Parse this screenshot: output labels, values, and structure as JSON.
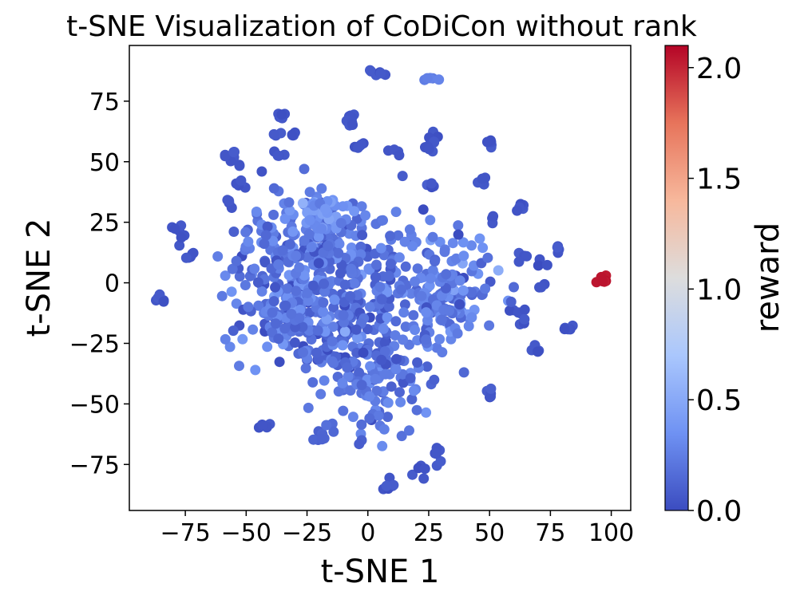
{
  "chart_data": {
    "type": "scatter",
    "title": "t-SNE Visualization of CoDiCon without rank",
    "xlabel": "t-SNE 1",
    "ylabel": "t-SNE 2",
    "xlim": [
      -98,
      108
    ],
    "ylim": [
      -94,
      98
    ],
    "xticks": [
      -75,
      -50,
      -25,
      0,
      25,
      50,
      75,
      100
    ],
    "yticks": [
      -75,
      -50,
      -25,
      0,
      25,
      50,
      75
    ],
    "xtick_labels": [
      "−75",
      "−50",
      "−25",
      "0",
      "25",
      "50",
      "75",
      "100"
    ],
    "ytick_labels": [
      "−75",
      "−50",
      "−25",
      "0",
      "25",
      "50",
      "75"
    ],
    "colorbar": {
      "label": "reward",
      "range": [
        0.0,
        2.1
      ],
      "ticks": [
        0.0,
        0.5,
        1.0,
        1.5,
        2.0
      ],
      "tick_labels": [
        "0.0",
        "0.5",
        "1.0",
        "1.5",
        "2.0"
      ],
      "colormap": "coolwarm",
      "colormap_stops": [
        "#3b4cc0",
        "#6f92f3",
        "#aac7fd",
        "#dddddd",
        "#f7b89c",
        "#e7745b",
        "#b40426"
      ]
    },
    "clusters": [
      {
        "x": 96,
        "y": 0,
        "spread": 1.2,
        "n": 6,
        "reward": 2.05
      },
      {
        "x": 26,
        "y": 84,
        "spread": 1.2,
        "n": 5,
        "reward": 0.25
      },
      {
        "x": 3,
        "y": 87,
        "spread": 1.5,
        "n": 6,
        "reward": 0.05
      },
      {
        "x": -36,
        "y": 69,
        "spread": 1.5,
        "n": 6,
        "reward": 0.05
      },
      {
        "x": -7,
        "y": 69,
        "spread": 1.5,
        "n": 6,
        "reward": 0.05
      },
      {
        "x": -8,
        "y": 65,
        "spread": 1.3,
        "n": 4,
        "reward": 0.05
      },
      {
        "x": -29,
        "y": 62,
        "spread": 1.3,
        "n": 4,
        "reward": 0.05
      },
      {
        "x": -37,
        "y": 60,
        "spread": 1.2,
        "n": 3,
        "reward": 0.05
      },
      {
        "x": 27,
        "y": 60,
        "spread": 1.4,
        "n": 5,
        "reward": 0.05
      },
      {
        "x": 26,
        "y": 56,
        "spread": 1.3,
        "n": 4,
        "reward": 0.05
      },
      {
        "x": -3,
        "y": 57,
        "spread": 1.4,
        "n": 5,
        "reward": 0.05
      },
      {
        "x": 50,
        "y": 57,
        "spread": 1.4,
        "n": 5,
        "reward": 0.05
      },
      {
        "x": -57,
        "y": 53,
        "spread": 1.5,
        "n": 6,
        "reward": 0.05
      },
      {
        "x": -36,
        "y": 54,
        "spread": 1.4,
        "n": 4,
        "reward": 0.05
      },
      {
        "x": 12,
        "y": 53,
        "spread": 1.4,
        "n": 4,
        "reward": 0.05
      },
      {
        "x": -53,
        "y": 49,
        "spread": 1.0,
        "n": 2,
        "reward": 0.05
      },
      {
        "x": 47,
        "y": 42,
        "spread": 1.5,
        "n": 6,
        "reward": 0.05
      },
      {
        "x": -52,
        "y": 40,
        "spread": 1.5,
        "n": 5,
        "reward": 0.05
      },
      {
        "x": 26,
        "y": 41,
        "spread": 1.4,
        "n": 4,
        "reward": 0.05
      },
      {
        "x": -44,
        "y": 46,
        "spread": 0.6,
        "n": 1,
        "reward": 0.05
      },
      {
        "x": -57,
        "y": 33,
        "spread": 1.4,
        "n": 4,
        "reward": 0.05
      },
      {
        "x": 62,
        "y": 31,
        "spread": 1.4,
        "n": 5,
        "reward": 0.05
      },
      {
        "x": 51,
        "y": 26,
        "spread": 1.4,
        "n": 4,
        "reward": 0.05
      },
      {
        "x": -78,
        "y": 22,
        "spread": 1.4,
        "n": 4,
        "reward": 0.05
      },
      {
        "x": -76,
        "y": 18,
        "spread": 1.2,
        "n": 3,
        "reward": 0.05
      },
      {
        "x": -73,
        "y": 11,
        "spread": 1.5,
        "n": 5,
        "reward": 0.05
      },
      {
        "x": -86,
        "y": -7,
        "spread": 1.5,
        "n": 5,
        "reward": 0.05
      },
      {
        "x": 64,
        "y": 11,
        "spread": 1.4,
        "n": 4,
        "reward": 0.05
      },
      {
        "x": 78,
        "y": 14,
        "spread": 1.4,
        "n": 4,
        "reward": 0.05
      },
      {
        "x": 72,
        "y": 9,
        "spread": 1.2,
        "n": 3,
        "reward": 0.05
      },
      {
        "x": 71,
        "y": -1,
        "spread": 1.2,
        "n": 3,
        "reward": 0.05
      },
      {
        "x": 62,
        "y": -13,
        "spread": 1.5,
        "n": 5,
        "reward": 0.05
      },
      {
        "x": 64,
        "y": -17,
        "spread": 1.2,
        "n": 3,
        "reward": 0.05
      },
      {
        "x": 82,
        "y": -18,
        "spread": 1.5,
        "n": 5,
        "reward": 0.05
      },
      {
        "x": 68,
        "y": -28,
        "spread": 1.5,
        "n": 6,
        "reward": 0.05
      },
      {
        "x": 51,
        "y": -45,
        "spread": 1.4,
        "n": 5,
        "reward": 0.05
      },
      {
        "x": -43,
        "y": -59,
        "spread": 1.5,
        "n": 6,
        "reward": 0.05
      },
      {
        "x": 8,
        "y": -84,
        "spread": 1.5,
        "n": 6,
        "reward": 0.05
      },
      {
        "x": 22,
        "y": -78,
        "spread": 1.5,
        "n": 5,
        "reward": 0.05
      },
      {
        "x": 28,
        "y": -72,
        "spread": 1.6,
        "n": 6,
        "reward": 0.05
      },
      {
        "x": -18,
        "y": -64,
        "spread": 2.5,
        "n": 10,
        "reward": 0.12
      },
      {
        "x": -30,
        "y": 10,
        "spread": 14,
        "n": 180,
        "reward": 0.22
      },
      {
        "x": -32,
        "y": -15,
        "spread": 10,
        "n": 120,
        "reward": 0.2
      },
      {
        "x": -5,
        "y": 5,
        "spread": 14,
        "n": 160,
        "reward": 0.18
      },
      {
        "x": 30,
        "y": -5,
        "spread": 12,
        "n": 170,
        "reward": 0.24
      },
      {
        "x": 5,
        "y": -40,
        "spread": 12,
        "n": 110,
        "reward": 0.2
      },
      {
        "x": -8,
        "y": -25,
        "spread": 9,
        "n": 70,
        "reward": 0.12
      },
      {
        "x": -20,
        "y": 30,
        "spread": 5,
        "n": 50,
        "reward": 0.34
      }
    ]
  }
}
